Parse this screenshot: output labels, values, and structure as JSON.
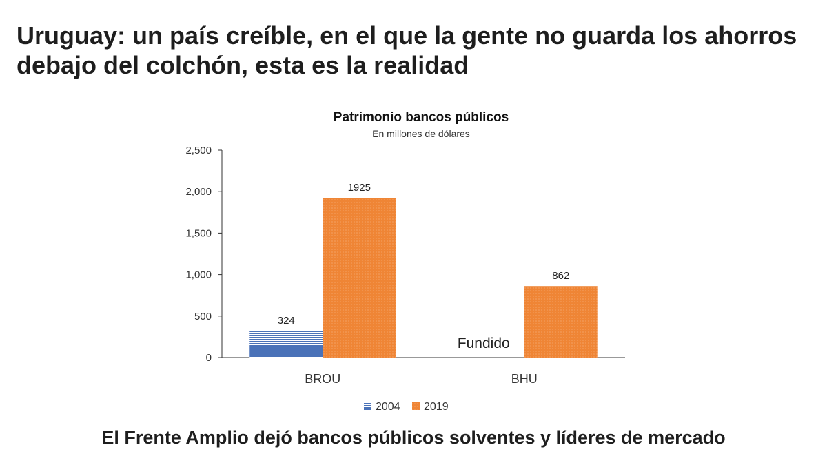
{
  "headline": "Uruguay: un país creíble, en el que la gente no guarda los ahorros debajo del colchón, esta es la realidad",
  "footer_caption": "El Frente Amplio dejó bancos públicos solventes y líderes de mercado",
  "colors": {
    "series_2004": "#4a72b8",
    "series_2019": "#ef8535",
    "axis": "#333333"
  },
  "chart_data": {
    "type": "bar",
    "title": "Patrimonio bancos públicos",
    "subtitle": "En millones de dólares",
    "categories": [
      "BROU",
      "BHU"
    ],
    "series": [
      {
        "name": "2004",
        "values": [
          324,
          null
        ],
        "data_labels": [
          "324",
          ""
        ]
      },
      {
        "name": "2019",
        "values": [
          1925,
          862
        ],
        "data_labels": [
          "1925",
          "862"
        ]
      }
    ],
    "annotations": [
      {
        "category": "BHU",
        "series": "2004",
        "text": "Fundido"
      }
    ],
    "yticks": [
      "0",
      "500",
      "1,000",
      "1,500",
      "2,000",
      "2,500"
    ],
    "ylim": [
      0,
      2500
    ],
    "grid": false,
    "legend_position": "bottom"
  }
}
